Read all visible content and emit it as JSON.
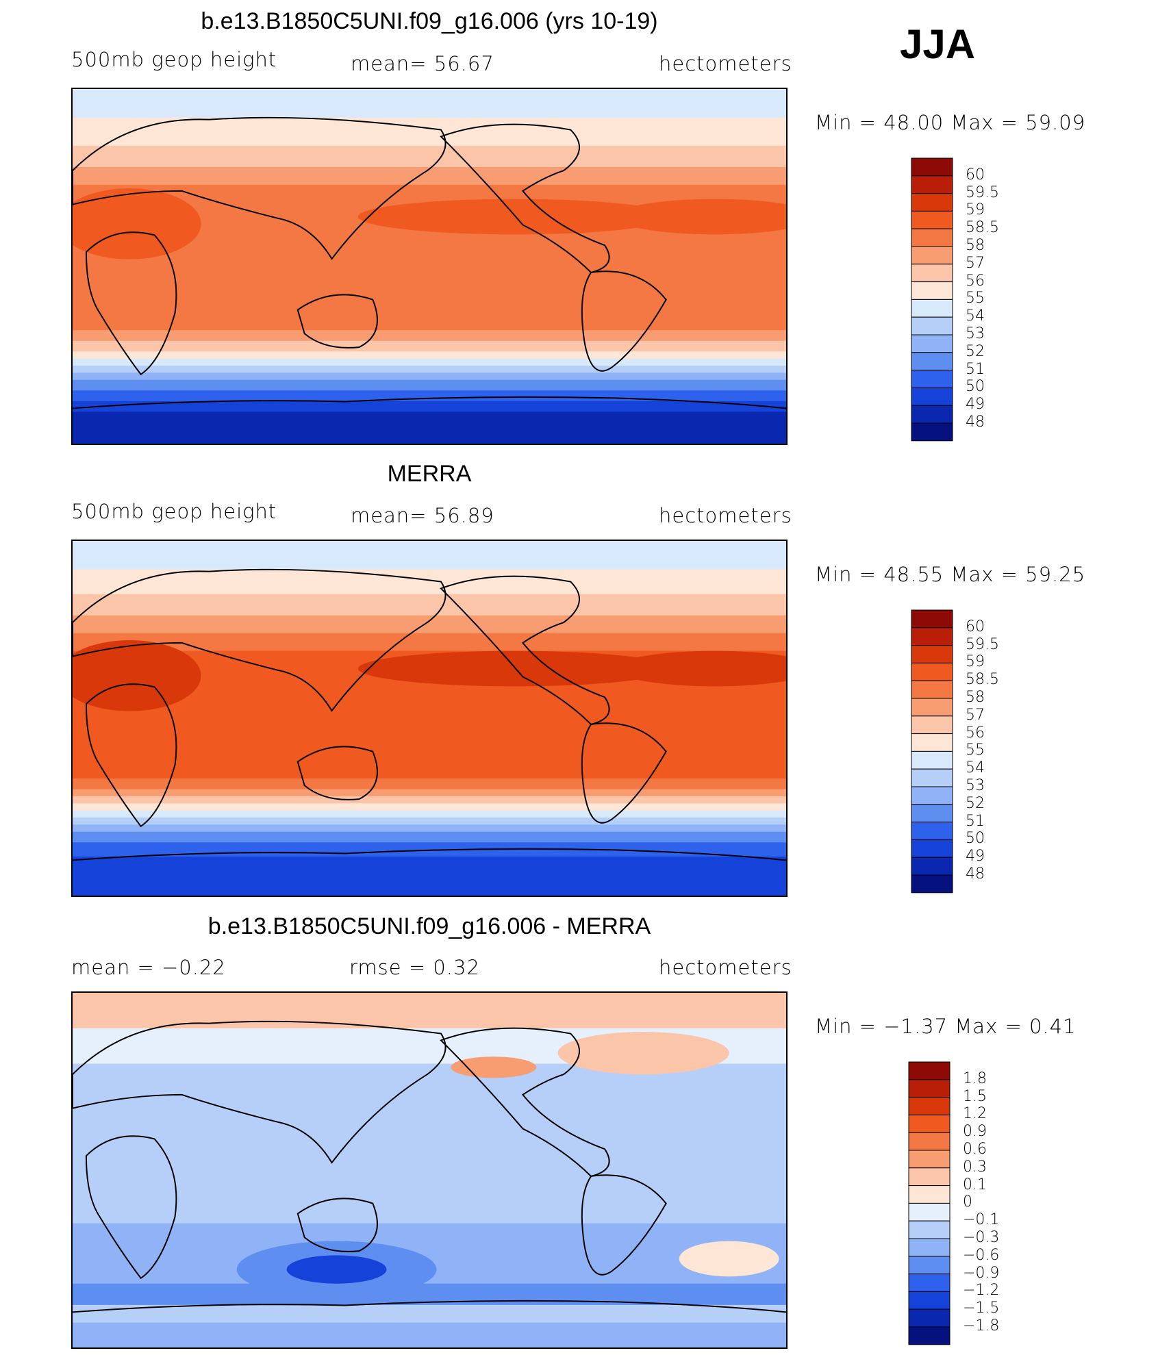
{
  "season": "JJA",
  "panels": [
    {
      "title": "b.e13.B1850C5UNI.f09_g16.006 (yrs 10-19)",
      "left_label": "500mb  geop  height",
      "center_label": "mean=   56.67",
      "right_label": "hectometers",
      "minmax": "Min  =    48.00  Max  =    59.09"
    },
    {
      "title": "MERRA",
      "left_label": "500mb  geop  height",
      "center_label": "mean=   56.89",
      "right_label": "hectometers",
      "minmax": "Min  =    48.55  Max  =    59.25"
    },
    {
      "title": "b.e13.B1850C5UNI.f09_g16.006 - MERRA",
      "left_label": "mean  =    −0.22",
      "center_label": "rmse  =     0.32",
      "right_label": "hectometers",
      "minmax": "Min  =   −1.37  Max  =     0.41"
    }
  ],
  "chart_data": [
    {
      "type": "heatmap",
      "title": "b.e13.B1850C5UNI.f09_g16.006 (yrs 10-19)",
      "variable": "500mb geop height",
      "units": "hectometers",
      "mean": 56.67,
      "min": 48.0,
      "max": 59.09,
      "colorbar": {
        "levels": [
          "60",
          "59.5",
          "59",
          "58.5",
          "58",
          "57",
          "56",
          "55",
          "54",
          "53",
          "52",
          "51",
          "50",
          "49",
          "48"
        ],
        "colors": [
          "#8e0a06",
          "#b81e08",
          "#d9380b",
          "#f05a20",
          "#f47844",
          "#f89c72",
          "#fbc5aa",
          "#fde6d5",
          "#d7e9fb",
          "#b5cff8",
          "#8fb3f6",
          "#5f8ef1",
          "#2e61ec",
          "#1542d8",
          "#0a27b0",
          "#04117e"
        ]
      }
    },
    {
      "type": "heatmap",
      "title": "MERRA",
      "variable": "500mb geop height",
      "units": "hectometers",
      "mean": 56.89,
      "min": 48.55,
      "max": 59.25,
      "colorbar": {
        "levels": [
          "60",
          "59.5",
          "59",
          "58.5",
          "58",
          "57",
          "56",
          "55",
          "54",
          "53",
          "52",
          "51",
          "50",
          "49",
          "48"
        ],
        "colors": [
          "#8e0a06",
          "#b81e08",
          "#d9380b",
          "#f05a20",
          "#f47844",
          "#f89c72",
          "#fbc5aa",
          "#fde6d5",
          "#d7e9fb",
          "#b5cff8",
          "#8fb3f6",
          "#5f8ef1",
          "#2e61ec",
          "#1542d8",
          "#0a27b0",
          "#04117e"
        ]
      }
    },
    {
      "type": "heatmap",
      "title": "b.e13.B1850C5UNI.f09_g16.006 - MERRA",
      "units": "hectometers",
      "mean": -0.22,
      "rmse": 0.32,
      "min": -1.37,
      "max": 0.41,
      "colorbar": {
        "levels": [
          "1.8",
          "1.5",
          "1.2",
          "0.9",
          "0.6",
          "0.3",
          "0.1",
          "0",
          "−0.1",
          "−0.3",
          "−0.6",
          "−0.9",
          "−1.2",
          "−1.5",
          "−1.8"
        ],
        "colors": [
          "#8e0a06",
          "#b81e08",
          "#d9380b",
          "#f05a20",
          "#f47844",
          "#f89c72",
          "#fbc5aa",
          "#fde6d5",
          "#e6f0fc",
          "#b5cff8",
          "#8fb3f6",
          "#5f8ef1",
          "#2e61ec",
          "#1542d8",
          "#0a27b0",
          "#04117e"
        ]
      }
    }
  ]
}
